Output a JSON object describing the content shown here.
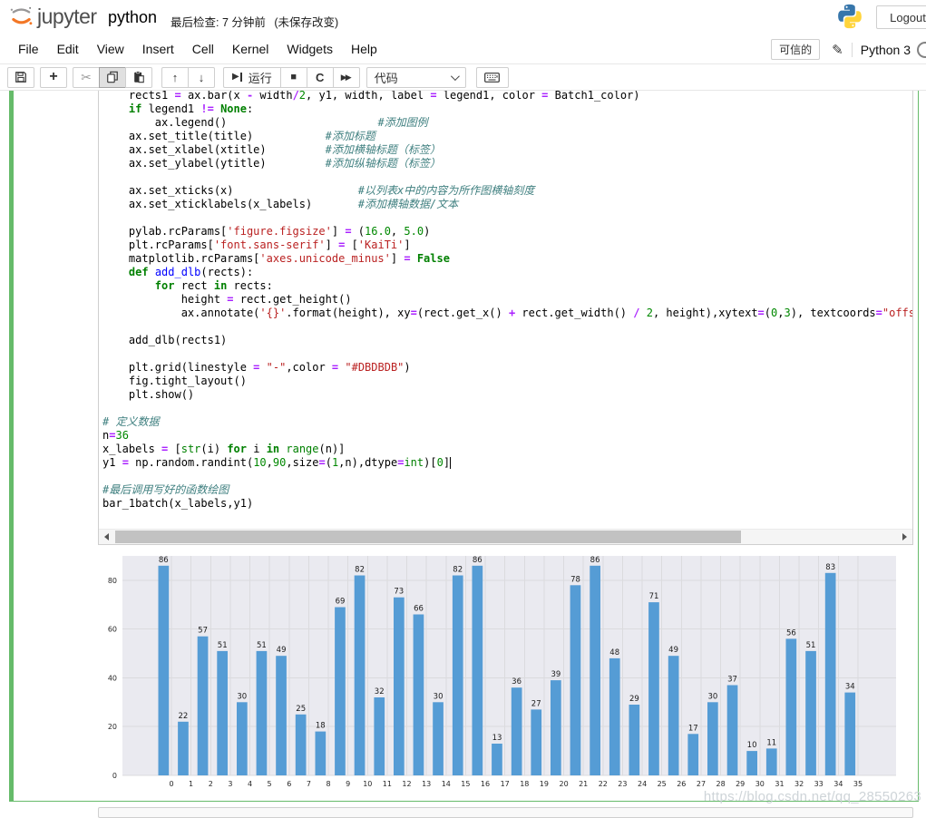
{
  "header": {
    "logo_text": "jupyter",
    "title": "python",
    "checkpoint_text": "最后检查: 7 分钟前",
    "unsaved_text": "(未保存改变)",
    "logout_label": "Logout"
  },
  "menu": {
    "items": [
      "File",
      "Edit",
      "View",
      "Insert",
      "Cell",
      "Kernel",
      "Widgets",
      "Help"
    ],
    "trusted_label": "可信的",
    "kernel_name": "Python 3"
  },
  "toolbar": {
    "run_label": "运行",
    "cell_type": "代码"
  },
  "code": {
    "cursor_line": 27,
    "lines": [
      [
        [
          "p",
          "    rects1 "
        ],
        [
          "o",
          "="
        ],
        [
          "p",
          " ax.bar(x "
        ],
        [
          "o",
          "-"
        ],
        [
          "p",
          " width"
        ],
        [
          "o",
          "/"
        ],
        [
          "n",
          "2"
        ],
        [
          "p",
          ", y1, width, label "
        ],
        [
          "o",
          "="
        ],
        [
          "p",
          " legend1, color "
        ],
        [
          "o",
          "="
        ],
        [
          "p",
          " Batch1_color)"
        ]
      ],
      [
        [
          "p",
          "    "
        ],
        [
          "k",
          "if"
        ],
        [
          "p",
          " legend1 "
        ],
        [
          "o",
          "!="
        ],
        [
          "p",
          " "
        ],
        [
          "k",
          "None"
        ],
        [
          "p",
          ":"
        ]
      ],
      [
        [
          "p",
          "        ax.legend()                       "
        ],
        [
          "c",
          "#添加图例"
        ]
      ],
      [
        [
          "p",
          "    ax.set_title(title)           "
        ],
        [
          "c",
          "#添加标题"
        ]
      ],
      [
        [
          "p",
          "    ax.set_xlabel(xtitle)         "
        ],
        [
          "c",
          "#添加横轴标题（标签）"
        ]
      ],
      [
        [
          "p",
          "    ax.set_ylabel(ytitle)         "
        ],
        [
          "c",
          "#添加纵轴标题（标签）"
        ]
      ],
      [],
      [
        [
          "p",
          "    ax.set_xticks(x)                   "
        ],
        [
          "c",
          "#以列表x中的内容为所作图横轴刻度"
        ]
      ],
      [
        [
          "p",
          "    ax.set_xticklabels(x_labels)       "
        ],
        [
          "c",
          "#添加横轴数据/文本"
        ]
      ],
      [],
      [
        [
          "p",
          "    pylab.rcParams["
        ],
        [
          "s",
          "'figure.figsize'"
        ],
        [
          "p",
          "] "
        ],
        [
          "o",
          "="
        ],
        [
          "p",
          " ("
        ],
        [
          "n",
          "16.0"
        ],
        [
          "p",
          ", "
        ],
        [
          "n",
          "5.0"
        ],
        [
          "p",
          ")"
        ]
      ],
      [
        [
          "p",
          "    plt.rcParams["
        ],
        [
          "s",
          "'font.sans-serif'"
        ],
        [
          "p",
          "] "
        ],
        [
          "o",
          "="
        ],
        [
          "p",
          " ["
        ],
        [
          "s",
          "'KaiTi'"
        ],
        [
          "p",
          "]"
        ]
      ],
      [
        [
          "p",
          "    matplotlib.rcParams["
        ],
        [
          "s",
          "'axes.unicode_minus'"
        ],
        [
          "p",
          "] "
        ],
        [
          "o",
          "="
        ],
        [
          "p",
          " "
        ],
        [
          "k",
          "False"
        ]
      ],
      [
        [
          "p",
          "    "
        ],
        [
          "k",
          "def"
        ],
        [
          "p",
          " "
        ],
        [
          "d",
          "add_dlb"
        ],
        [
          "p",
          "(rects):"
        ]
      ],
      [
        [
          "p",
          "        "
        ],
        [
          "k",
          "for"
        ],
        [
          "p",
          " rect "
        ],
        [
          "k",
          "in"
        ],
        [
          "p",
          " rects:"
        ]
      ],
      [
        [
          "p",
          "            height "
        ],
        [
          "o",
          "="
        ],
        [
          "p",
          " rect.get_height()"
        ]
      ],
      [
        [
          "p",
          "            ax.annotate("
        ],
        [
          "s",
          "'{}'"
        ],
        [
          "p",
          ".format(height), xy"
        ],
        [
          "o",
          "="
        ],
        [
          "p",
          "(rect.get_x() "
        ],
        [
          "o",
          "+"
        ],
        [
          "p",
          " rect.get_width() "
        ],
        [
          "o",
          "/"
        ],
        [
          "p",
          " "
        ],
        [
          "n",
          "2"
        ],
        [
          "p",
          ", height),xytext"
        ],
        [
          "o",
          "="
        ],
        [
          "p",
          "("
        ],
        [
          "n",
          "0"
        ],
        [
          "p",
          ","
        ],
        [
          "n",
          "3"
        ],
        [
          "p",
          "), textcoords"
        ],
        [
          "o",
          "="
        ],
        [
          "s",
          "\"offset points\""
        ]
      ],
      [],
      [
        [
          "p",
          "    add_dlb(rects1)"
        ]
      ],
      [],
      [
        [
          "p",
          "    plt.grid(linestyle "
        ],
        [
          "o",
          "="
        ],
        [
          "p",
          " "
        ],
        [
          "s",
          "\"-\""
        ],
        [
          "p",
          ",color "
        ],
        [
          "o",
          "="
        ],
        [
          "p",
          " "
        ],
        [
          "s",
          "\"#DBDBDB\""
        ],
        [
          "p",
          ")"
        ]
      ],
      [
        [
          "p",
          "    fig.tight_layout()"
        ]
      ],
      [
        [
          "p",
          "    plt.show()"
        ]
      ],
      [],
      [
        [
          "c",
          "# 定义数据"
        ]
      ],
      [
        [
          "p",
          "n"
        ],
        [
          "o",
          "="
        ],
        [
          "n",
          "36"
        ]
      ],
      [
        [
          "p",
          "x_labels "
        ],
        [
          "o",
          "="
        ],
        [
          "p",
          " ["
        ],
        [
          "b",
          "str"
        ],
        [
          "p",
          "(i) "
        ],
        [
          "k",
          "for"
        ],
        [
          "p",
          " i "
        ],
        [
          "k",
          "in"
        ],
        [
          "p",
          " "
        ],
        [
          "b",
          "range"
        ],
        [
          "p",
          "(n)]"
        ]
      ],
      [
        [
          "p",
          "y1 "
        ],
        [
          "o",
          "="
        ],
        [
          "p",
          " np.random.randint("
        ],
        [
          "n",
          "10"
        ],
        [
          "p",
          ","
        ],
        [
          "n",
          "90"
        ],
        [
          "p",
          ",size"
        ],
        [
          "o",
          "="
        ],
        [
          "p",
          "("
        ],
        [
          "n",
          "1"
        ],
        [
          "p",
          ",n),dtype"
        ],
        [
          "o",
          "="
        ],
        [
          "b",
          "int"
        ],
        [
          "p",
          ")["
        ],
        [
          "n",
          "0"
        ],
        [
          "p",
          "]"
        ]
      ],
      [],
      [
        [
          "c",
          "#最后调用写好的函数绘图"
        ]
      ],
      [
        [
          "p",
          "bar_1batch(x_labels,y1)"
        ]
      ]
    ]
  },
  "chart_data": {
    "type": "bar",
    "title": "",
    "xlabel": "",
    "ylabel": "",
    "categories": [
      "0",
      "1",
      "2",
      "3",
      "4",
      "5",
      "6",
      "7",
      "8",
      "9",
      "10",
      "11",
      "12",
      "13",
      "14",
      "15",
      "16",
      "17",
      "18",
      "19",
      "20",
      "21",
      "22",
      "23",
      "24",
      "25",
      "26",
      "27",
      "28",
      "29",
      "30",
      "31",
      "32",
      "33",
      "34",
      "35"
    ],
    "values": [
      86,
      22,
      57,
      51,
      30,
      51,
      49,
      25,
      18,
      69,
      82,
      32,
      73,
      66,
      30,
      82,
      86,
      13,
      36,
      27,
      39,
      78,
      86,
      48,
      29,
      71,
      49,
      17,
      30,
      37,
      10,
      11,
      56,
      51,
      83,
      34
    ],
    "ylim": [
      0,
      90
    ],
    "yticks": [
      0,
      20,
      40,
      60,
      80
    ],
    "grid": true,
    "value_labels": true,
    "legend": "none",
    "bar_color": "#559CD5",
    "plot_bg": "#EAEAF0",
    "grid_color": "#DBDBDE"
  },
  "watermark": {
    "text": "https://blog.csdn.net/qq_28550263"
  },
  "colors": {
    "selected_cell_border": "#66BB6A",
    "input_border": "#CFCFCF"
  }
}
